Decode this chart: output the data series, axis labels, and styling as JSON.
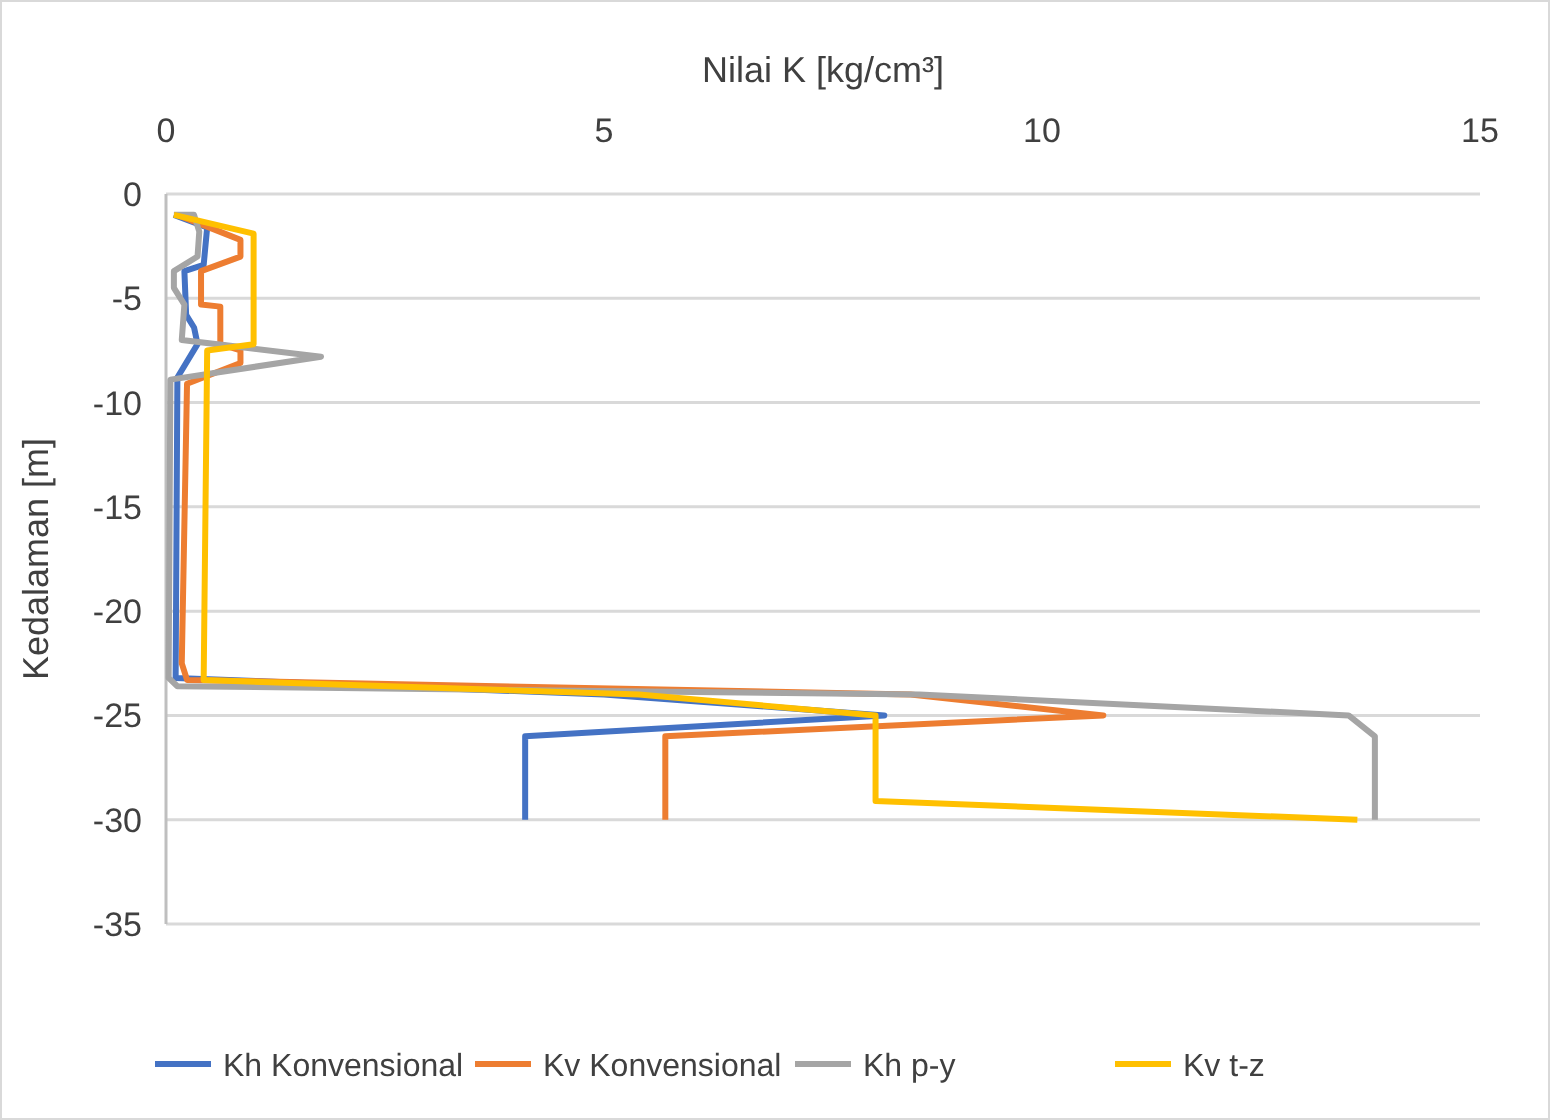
{
  "chart_data": {
    "type": "line",
    "xlabel": "Nilai K  [kg/cm³]",
    "ylabel": "Kedalaman [m]",
    "xlim": [
      0,
      15
    ],
    "xticks": [
      0,
      5,
      10,
      15
    ],
    "ylim": [
      -35,
      0
    ],
    "yticks": [
      0,
      -5,
      -10,
      -15,
      -20,
      -25,
      -30,
      -35
    ],
    "grid": "y",
    "legend": "bottom",
    "marker": "none",
    "line_style": "solid",
    "series": [
      {
        "name": "Kh Konvensional",
        "color": "#4472c4",
        "x": [
          0.09,
          0.47,
          0.43,
          0.21,
          0.23,
          0.32,
          0.36,
          0.13,
          0.11,
          5,
          8.2,
          4.1,
          4.1
        ],
        "values": [
          -1,
          -1.6,
          -3.4,
          -3.7,
          -5.8,
          -6.4,
          -7.2,
          -8.8,
          -23.2,
          -24,
          -25,
          -26,
          -30
        ]
      },
      {
        "name": "Kv Konvensional",
        "color": "#ed7d31",
        "x": [
          0.13,
          0.85,
          0.85,
          0.4,
          0.4,
          0.62,
          0.62,
          0.85,
          0.85,
          0.24,
          0.18,
          0.24,
          8.5,
          10.7,
          5.7,
          5.7
        ],
        "values": [
          -1,
          -2.2,
          -3,
          -3.7,
          -5.3,
          -5.4,
          -7.2,
          -7.5,
          -8.1,
          -9.1,
          -22.5,
          -23.3,
          -24,
          -25,
          -26,
          -30
        ]
      },
      {
        "name": "Kh p-y",
        "color": "#a5a5a5",
        "x": [
          0.09,
          0.32,
          0.38,
          0.36,
          0.09,
          0.09,
          0.21,
          0.18,
          1.77,
          0.05,
          0.03,
          0.13,
          8.6,
          13.5,
          13.8,
          13.8
        ],
        "values": [
          -1,
          -1,
          -1.8,
          -3,
          -3.7,
          -4.5,
          -5.3,
          -7,
          -7.8,
          -8.9,
          -23.2,
          -23.6,
          -24,
          -25,
          -26,
          -30
        ]
      },
      {
        "name": "Kv t-z",
        "color": "#ffc000",
        "x": [
          0.09,
          1,
          1,
          0.47,
          0.43,
          5.4,
          8.1,
          8.1,
          13.6
        ],
        "values": [
          -1,
          -1.9,
          -7.2,
          -7.5,
          -23.3,
          -24,
          -25,
          -29.1,
          -30
        ]
      }
    ]
  }
}
